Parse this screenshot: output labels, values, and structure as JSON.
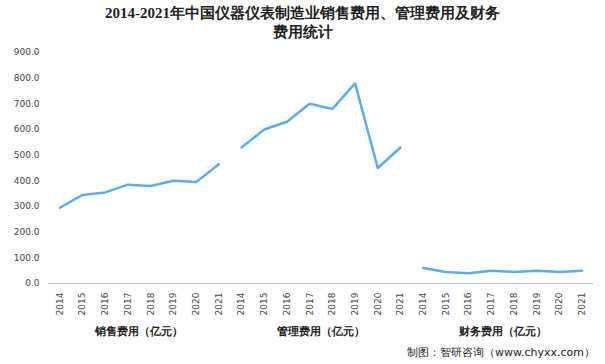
{
  "chart_data": {
    "type": "line",
    "title": "2014-2021年中国仪器仪表制造业销售费用、管理费用及财务费用统计",
    "categories": [
      "2014",
      "2015",
      "2016",
      "2017",
      "2018",
      "2019",
      "2020",
      "2021",
      "2014",
      "2015",
      "2016",
      "2017",
      "2018",
      "2019",
      "2020",
      "2021",
      "2014",
      "2015",
      "2016",
      "2017",
      "2018",
      "2019",
      "2020",
      "2021"
    ],
    "series": [
      {
        "name": "销售费用（亿元）",
        "color": "#5aaee6",
        "values": [
          295,
          345,
          355,
          385,
          380,
          400,
          395,
          465,
          null,
          null,
          null,
          null,
          null,
          null,
          null,
          null,
          null,
          null,
          null,
          null,
          null,
          null,
          null,
          null
        ]
      },
      {
        "name": "管理费用（亿元）",
        "color": "#5aaee6",
        "values": [
          null,
          null,
          null,
          null,
          null,
          null,
          null,
          null,
          530,
          600,
          630,
          700,
          680,
          780,
          450,
          530,
          null,
          null,
          null,
          null,
          null,
          null,
          null,
          null
        ]
      },
      {
        "name": "财务费用（亿元）",
        "color": "#5aaee6",
        "values": [
          null,
          null,
          null,
          null,
          null,
          null,
          null,
          null,
          null,
          null,
          null,
          null,
          null,
          null,
          null,
          null,
          60,
          45,
          40,
          50,
          45,
          50,
          45,
          50
        ]
      }
    ],
    "ylim": [
      0,
      900
    ],
    "yticks": [
      {
        "value": 0,
        "label": "0.0"
      },
      {
        "value": 100,
        "label": "100.0"
      },
      {
        "value": 200,
        "label": "200.0"
      },
      {
        "value": 300,
        "label": "300.0"
      },
      {
        "value": 400,
        "label": "400.0"
      },
      {
        "value": 500,
        "label": "500.0"
      },
      {
        "value": 600,
        "label": "600.0"
      },
      {
        "value": 700,
        "label": "700.0"
      },
      {
        "value": 800,
        "label": "800.0"
      },
      {
        "value": 900,
        "label": "900.0"
      }
    ],
    "grid": false,
    "source": "制图：智研咨询（www.chyxx.com）"
  }
}
